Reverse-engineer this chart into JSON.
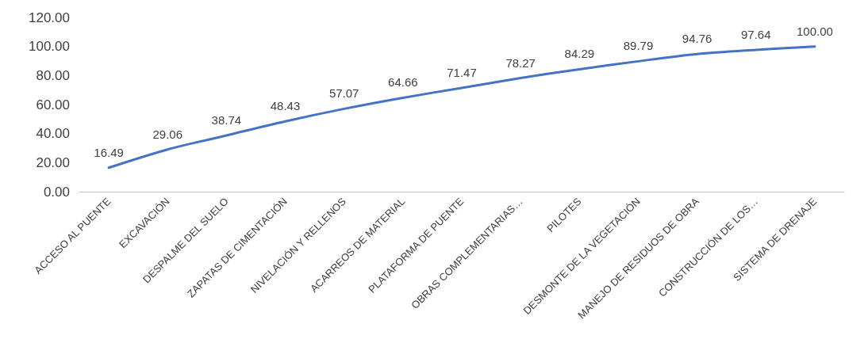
{
  "chart_data": {
    "type": "line",
    "categories": [
      "ACCESO AL PUENTE",
      "EXCAVACIÓN",
      "DESPALME DEL SUELO",
      "ZAPATAS DE CIMENTACIÓN",
      "NIVELACIÓN Y RELLENOS",
      "ACARREOS DE MATERIAL",
      "PLATAFORMA DE PUENTE",
      "OBRAS COMPLEMENTARIAS…",
      "PILOTES",
      "DESMONTE DE LA VEGETACIÓN",
      "MANEJO DE RESIDUOS DE OBRA",
      "CONSTRUCCIÓN DE LOS…",
      "SISTEMA DE DRENAJE"
    ],
    "series": [
      {
        "color": "#4472c4",
        "values": [
          16.49,
          29.06,
          38.74,
          48.43,
          57.07,
          64.66,
          71.47,
          78.27,
          84.29,
          89.79,
          94.76,
          97.64,
          100.0
        ],
        "value_labels": [
          "16.49",
          "29.06",
          "38.74",
          "48.43",
          "57.07",
          "64.66",
          "71.47",
          "78.27",
          "84.29",
          "89.79",
          "94.76",
          "97.64",
          "100.00"
        ]
      }
    ],
    "ylim": [
      0,
      120
    ],
    "yticks": [
      {
        "value": 0,
        "label": "0.00"
      },
      {
        "value": 20,
        "label": "20.00"
      },
      {
        "value": 40,
        "label": "40.00"
      },
      {
        "value": 60,
        "label": "60.00"
      },
      {
        "value": 80,
        "label": "80.00"
      },
      {
        "value": 100,
        "label": "100.00"
      },
      {
        "value": 120,
        "label": "120.00"
      }
    ],
    "grid": false,
    "marker": "none",
    "line_style": "solid"
  }
}
